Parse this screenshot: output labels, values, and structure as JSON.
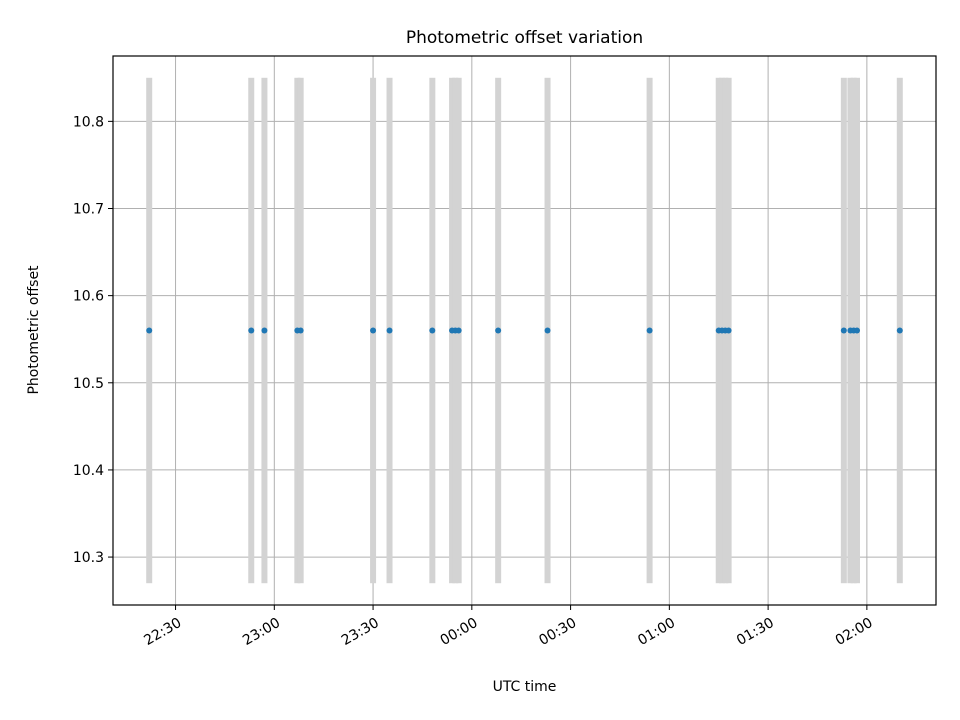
{
  "chart_data": {
    "type": "scatter",
    "title": "Photometric offset variation",
    "xlabel": "UTC time",
    "ylabel": "Photometric offset",
    "x_tick_labels": [
      "22:30",
      "23:00",
      "23:30",
      "00:00",
      "00:30",
      "01:00",
      "01:30",
      "02:00"
    ],
    "x_ticks": [
      "22:30",
      "23:00",
      "23:30",
      "00:00",
      "00:30",
      "01:00",
      "01:30",
      "02:00"
    ],
    "x_range": [
      "22:11",
      "02:21"
    ],
    "y_ticks": [
      10.3,
      10.4,
      10.5,
      10.6,
      10.7,
      10.8
    ],
    "ylim": [
      10.245,
      10.875
    ],
    "grid": true,
    "band_range": [
      10.27,
      10.85
    ],
    "point_color": "#1f77b4",
    "band_color": "#d3d3d3",
    "points": [
      {
        "time": "22:22",
        "y": 10.56
      },
      {
        "time": "22:53",
        "y": 10.56
      },
      {
        "time": "22:57",
        "y": 10.56
      },
      {
        "time": "23:07",
        "y": 10.56
      },
      {
        "time": "23:08",
        "y": 10.56
      },
      {
        "time": "23:30",
        "y": 10.56
      },
      {
        "time": "23:35",
        "y": 10.56
      },
      {
        "time": "23:48",
        "y": 10.56
      },
      {
        "time": "23:54",
        "y": 10.56
      },
      {
        "time": "23:55",
        "y": 10.56
      },
      {
        "time": "23:56",
        "y": 10.56
      },
      {
        "time": "00:08",
        "y": 10.56
      },
      {
        "time": "00:23",
        "y": 10.56
      },
      {
        "time": "00:54",
        "y": 10.56
      },
      {
        "time": "01:15",
        "y": 10.56
      },
      {
        "time": "01:16",
        "y": 10.56
      },
      {
        "time": "01:17",
        "y": 10.56
      },
      {
        "time": "01:18",
        "y": 10.56
      },
      {
        "time": "01:53",
        "y": 10.56
      },
      {
        "time": "01:55",
        "y": 10.56
      },
      {
        "time": "01:56",
        "y": 10.56
      },
      {
        "time": "01:57",
        "y": 10.56
      },
      {
        "time": "02:10",
        "y": 10.56
      }
    ]
  }
}
